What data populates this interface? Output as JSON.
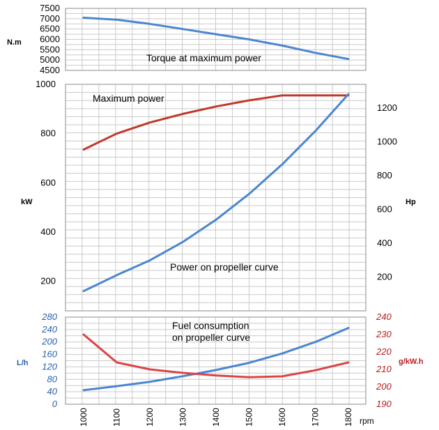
{
  "chart_data": [
    {
      "type": "line",
      "ylabel": "N.m",
      "ylim": [
        4500,
        7500
      ],
      "yticks": [
        "7500",
        "7000",
        "6500",
        "6000",
        "5500",
        "5000",
        "4500"
      ],
      "annotations": [
        "Torque at maximum power"
      ],
      "series": [
        {
          "x": [
            1000,
            1100,
            1200,
            1300,
            1400,
            1500,
            1600,
            1700,
            1800
          ],
          "values": [
            7050,
            6950,
            6750,
            6500,
            6250,
            6000,
            5700,
            5350,
            5050
          ],
          "color": "#4a86d0"
        }
      ]
    },
    {
      "type": "line",
      "ylabel": "kW",
      "ylabel_right": "Hp",
      "ylim": [
        80,
        1000
      ],
      "ylim_right": [
        0,
        1340
      ],
      "yticks": [
        "1000",
        "800",
        "600",
        "400",
        "200"
      ],
      "yticks_right": [
        "1200",
        "1000",
        "800",
        "600",
        "400",
        "200"
      ],
      "annotations": [
        "Maximum power",
        "Power on propeller curve"
      ],
      "series": [
        {
          "x": [
            1000,
            1100,
            1200,
            1300,
            1400,
            1500,
            1600,
            1700,
            1800
          ],
          "values": [
            735,
            800,
            845,
            880,
            910,
            935,
            955,
            955,
            955
          ],
          "color": "#c0392b"
        },
        {
          "x": [
            1000,
            1100,
            1200,
            1300,
            1400,
            1500,
            1600,
            1700,
            1800
          ],
          "values": [
            160,
            225,
            285,
            360,
            450,
            555,
            675,
            810,
            960
          ],
          "color": "#4a86d0"
        }
      ]
    },
    {
      "type": "line",
      "ylabel": "L/h",
      "ylabel_right": "g/kW.h",
      "xlabel": "rpm",
      "ylim": [
        0,
        280
      ],
      "ylim_right": [
        190,
        240
      ],
      "yticks": [
        "280",
        "240",
        "200",
        "160",
        "120",
        "80",
        "40",
        "0"
      ],
      "yticks_right": [
        "240",
        "230",
        "220",
        "210",
        "200",
        "190"
      ],
      "categories": [
        "1000",
        "1100",
        "1200",
        "1300",
        "1400",
        "1500",
        "1600",
        "1700",
        "1800"
      ],
      "annotations": [
        "Fuel consumption",
        "on propeller curve"
      ],
      "series": [
        {
          "axis": "left",
          "x": [
            1000,
            1100,
            1200,
            1300,
            1400,
            1500,
            1600,
            1700,
            1800
          ],
          "values": [
            45,
            58,
            72,
            90,
            110,
            133,
            163,
            200,
            245
          ],
          "color": "#4a86d0"
        },
        {
          "axis": "right",
          "x": [
            1000,
            1100,
            1200,
            1300,
            1400,
            1500,
            1600,
            1700,
            1800
          ],
          "values": [
            230,
            214,
            210,
            208,
            206.5,
            205.5,
            206,
            209.5,
            214
          ],
          "color": "#d94545"
        }
      ]
    }
  ]
}
